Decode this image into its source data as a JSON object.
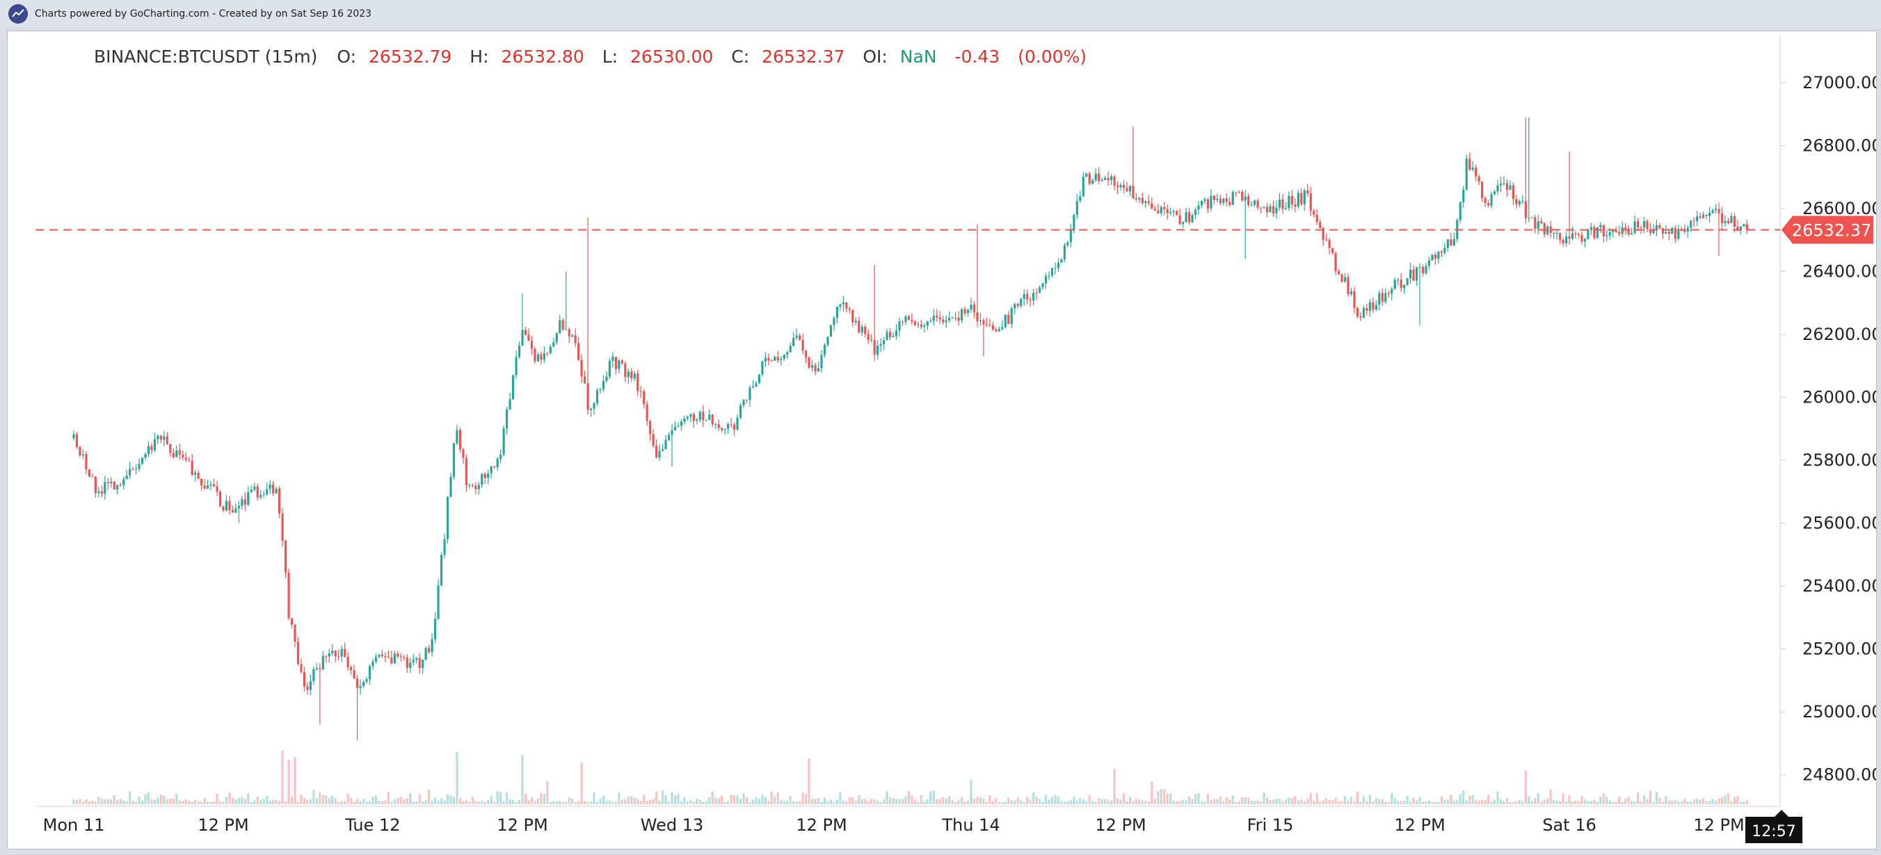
{
  "header": {
    "credits": "Charts powered by GoCharting.com - Created by  on Sat Sep 16 2023"
  },
  "legend": {
    "symbol": "BINANCE:BTCUSDT (15m)",
    "o_label": "O:",
    "o_value": "26532.79",
    "h_label": "H:",
    "h_value": "26532.80",
    "l_label": "L:",
    "l_value": "26530.00",
    "c_label": "C:",
    "c_value": "26532.37",
    "oi_label": "OI:",
    "oi_value": "NaN",
    "change": "-0.43",
    "change_pct": "(0.00%)"
  },
  "colors": {
    "up": "#26a69a",
    "down": "#ef5350",
    "price_line": "#ef5350",
    "text": "#333333",
    "value_red": "#e0302b",
    "value_green": "#1a9a6e"
  },
  "chart_data": {
    "type": "candlestick",
    "interval": "15m",
    "symbol": "BINANCE:BTCUSDT",
    "x_ticks": [
      "Mon 11",
      "12 PM",
      "Tue 12",
      "12 PM",
      "Wed 13",
      "12 PM",
      "Thu 14",
      "12 PM",
      "Fri 15",
      "12 PM",
      "Sat 16",
      "12 PM"
    ],
    "y_ticks": [
      "27000.00",
      "26800.00",
      "26600.00",
      "26400.00",
      "26200.00",
      "26000.00",
      "25800.00",
      "25600.00",
      "25400.00",
      "25200.00",
      "25000.00",
      "24800.00"
    ],
    "ylim": [
      24700,
      27150
    ],
    "last_price": 26532.37,
    "last_price_label": "26532.37",
    "crosshair_time_label": "12:57",
    "price_path": [
      {
        "day": 0.0,
        "price": 25870
      },
      {
        "day": 0.08,
        "price": 25700
      },
      {
        "day": 0.2,
        "price": 25760
      },
      {
        "day": 0.28,
        "price": 25880
      },
      {
        "day": 0.4,
        "price": 25770
      },
      {
        "day": 0.52,
        "price": 25640
      },
      {
        "day": 0.6,
        "price": 25700
      },
      {
        "day": 0.68,
        "price": 25720
      },
      {
        "day": 0.72,
        "price": 25300
      },
      {
        "day": 0.77,
        "price": 25060
      },
      {
        "day": 0.85,
        "price": 25200
      },
      {
        "day": 0.9,
        "price": 25180
      },
      {
        "day": 0.95,
        "price": 25060
      },
      {
        "day": 1.02,
        "price": 25180
      },
      {
        "day": 1.15,
        "price": 25150
      },
      {
        "day": 1.2,
        "price": 25230
      },
      {
        "day": 1.28,
        "price": 25920
      },
      {
        "day": 1.32,
        "price": 25700
      },
      {
        "day": 1.42,
        "price": 25800
      },
      {
        "day": 1.5,
        "price": 26220
      },
      {
        "day": 1.56,
        "price": 26100
      },
      {
        "day": 1.62,
        "price": 26230
      },
      {
        "day": 1.68,
        "price": 26180
      },
      {
        "day": 1.72,
        "price": 25960
      },
      {
        "day": 1.8,
        "price": 26120
      },
      {
        "day": 1.88,
        "price": 26050
      },
      {
        "day": 1.95,
        "price": 25820
      },
      {
        "day": 2.05,
        "price": 25950
      },
      {
        "day": 2.2,
        "price": 25900
      },
      {
        "day": 2.3,
        "price": 26100
      },
      {
        "day": 2.42,
        "price": 26180
      },
      {
        "day": 2.48,
        "price": 26080
      },
      {
        "day": 2.56,
        "price": 26320
      },
      {
        "day": 2.68,
        "price": 26150
      },
      {
        "day": 2.78,
        "price": 26250
      },
      {
        "day": 2.85,
        "price": 26230
      },
      {
        "day": 2.92,
        "price": 26250
      },
      {
        "day": 3.0,
        "price": 26280
      },
      {
        "day": 3.08,
        "price": 26210
      },
      {
        "day": 3.2,
        "price": 26330
      },
      {
        "day": 3.3,
        "price": 26420
      },
      {
        "day": 3.38,
        "price": 26700
      },
      {
        "day": 3.48,
        "price": 26680
      },
      {
        "day": 3.58,
        "price": 26620
      },
      {
        "day": 3.7,
        "price": 26560
      },
      {
        "day": 3.8,
        "price": 26620
      },
      {
        "day": 3.9,
        "price": 26640
      },
      {
        "day": 4.0,
        "price": 26600
      },
      {
        "day": 4.12,
        "price": 26640
      },
      {
        "day": 4.22,
        "price": 26420
      },
      {
        "day": 4.3,
        "price": 26260
      },
      {
        "day": 4.4,
        "price": 26340
      },
      {
        "day": 4.55,
        "price": 26440
      },
      {
        "day": 4.62,
        "price": 26520
      },
      {
        "day": 4.66,
        "price": 26760
      },
      {
        "day": 4.72,
        "price": 26620
      },
      {
        "day": 4.78,
        "price": 26680
      },
      {
        "day": 4.88,
        "price": 26560
      },
      {
        "day": 4.98,
        "price": 26500
      },
      {
        "day": 5.1,
        "price": 26530
      },
      {
        "day": 5.25,
        "price": 26540
      },
      {
        "day": 5.35,
        "price": 26520
      },
      {
        "day": 5.45,
        "price": 26600
      },
      {
        "day": 5.6,
        "price": 26532
      }
    ],
    "wicks": [
      {
        "day": 0.55,
        "price": 25600
      },
      {
        "day": 0.82,
        "price": 24960
      },
      {
        "day": 0.95,
        "price": 24910
      },
      {
        "day": 1.5,
        "price": 26330
      },
      {
        "day": 1.65,
        "price": 26400
      },
      {
        "day": 1.72,
        "price": 26570
      },
      {
        "day": 2.0,
        "price": 25780
      },
      {
        "day": 2.42,
        "price": 26200
      },
      {
        "day": 2.68,
        "price": 26420
      },
      {
        "day": 3.02,
        "price": 26550
      },
      {
        "day": 3.04,
        "price": 26130
      },
      {
        "day": 3.54,
        "price": 26860
      },
      {
        "day": 3.92,
        "price": 26440
      },
      {
        "day": 4.5,
        "price": 26230
      },
      {
        "day": 4.86,
        "price": 26890
      },
      {
        "day": 5.0,
        "price": 26780
      },
      {
        "day": 5.5,
        "price": 26450
      },
      {
        "day": 5.62,
        "price": 26640
      }
    ],
    "volume_spikes": [
      {
        "day": 0.7,
        "volume": 0.7
      },
      {
        "day": 0.72,
        "volume": 0.58
      },
      {
        "day": 0.74,
        "volume": 0.62
      },
      {
        "day": 1.28,
        "volume": 0.68
      },
      {
        "day": 1.5,
        "volume": 0.64
      },
      {
        "day": 1.58,
        "volume": 0.3
      },
      {
        "day": 1.7,
        "volume": 0.54
      },
      {
        "day": 2.46,
        "volume": 0.6
      },
      {
        "day": 3.0,
        "volume": 0.32
      },
      {
        "day": 3.48,
        "volume": 0.46
      },
      {
        "day": 3.6,
        "volume": 0.3
      },
      {
        "day": 4.85,
        "volume": 0.44
      }
    ]
  }
}
